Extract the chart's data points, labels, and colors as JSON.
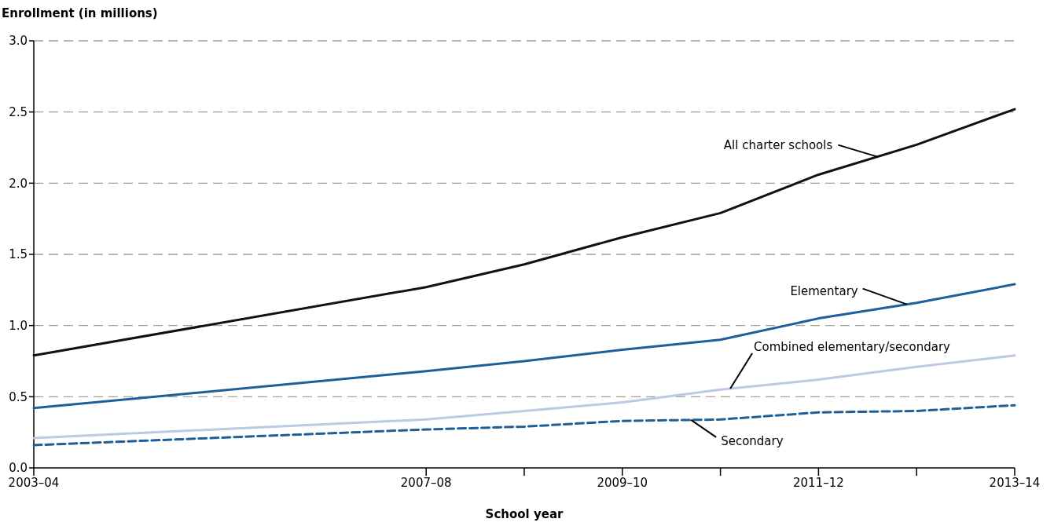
{
  "chart_data": {
    "type": "line",
    "xlabel": "School year",
    "ylabel": "Enrollment (in millions)",
    "categories": [
      "2003–04",
      null,
      null,
      null,
      "2007–08",
      null,
      "2009–10",
      null,
      "2011–12",
      null,
      "2013–14"
    ],
    "series": [
      {
        "name": "All charter schools",
        "color": "#111111",
        "values": [
          0.79,
          null,
          null,
          null,
          1.27,
          1.43,
          1.62,
          1.79,
          2.06,
          2.27,
          2.52
        ]
      },
      {
        "name": "Elementary",
        "color": "#1f5f99",
        "values": [
          0.42,
          null,
          null,
          null,
          0.68,
          0.75,
          0.83,
          0.9,
          1.05,
          1.16,
          1.29
        ]
      },
      {
        "name": "Combined elementary/secondary",
        "color": "#bcc9e2",
        "values": [
          0.21,
          null,
          null,
          null,
          0.34,
          0.4,
          0.46,
          0.55,
          0.62,
          0.71,
          0.79
        ]
      },
      {
        "name": "Secondary",
        "color": "#1f5f99",
        "line_style": "dashed",
        "values": [
          0.16,
          null,
          null,
          null,
          0.27,
          0.29,
          0.33,
          0.34,
          0.39,
          0.4,
          0.44
        ]
      }
    ],
    "ylim": [
      0,
      3
    ],
    "yticks": [
      {
        "value": 0,
        "label": "0.0"
      },
      {
        "value": 0.5,
        "label": "0.5"
      },
      {
        "value": 1,
        "label": "1.0"
      },
      {
        "value": 1.5,
        "label": "1.5"
      },
      {
        "value": 2,
        "label": "2.0"
      },
      {
        "value": 2.5,
        "label": "2.5"
      },
      {
        "value": 3,
        "label": "3.0"
      }
    ],
    "grid": "y"
  }
}
